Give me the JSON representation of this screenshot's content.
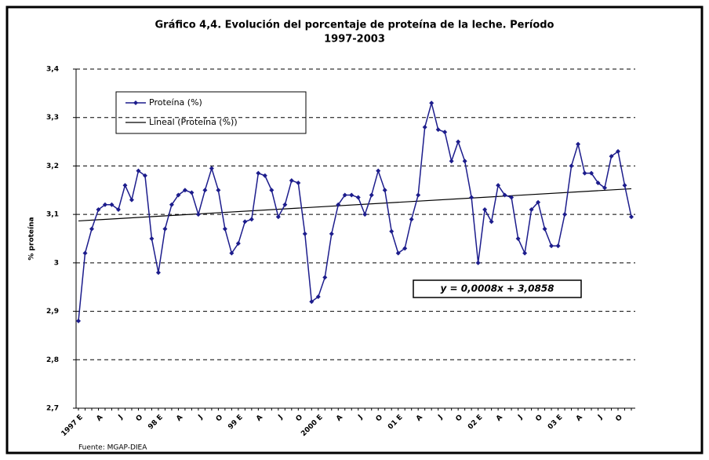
{
  "chart_data": {
    "type": "line",
    "title": "Gráfico 4,4. Evolución del porcentaje de proteína de la leche. Período",
    "subtitle": "1997-2003",
    "y_label": "% proteína",
    "source": "Fuente: MGAP-DIEA",
    "annotation": "y = 0,0008x + 3,0858",
    "categories": [
      "1997 E",
      null,
      null,
      "A",
      null,
      null,
      "J",
      null,
      null,
      "O",
      null,
      null,
      "98 E",
      null,
      null,
      "A",
      null,
      null,
      "J",
      null,
      null,
      "O",
      null,
      null,
      "99 E",
      null,
      null,
      "A",
      null,
      null,
      "J",
      null,
      null,
      "O",
      null,
      null,
      "2000 E",
      null,
      null,
      "A",
      null,
      null,
      "J",
      null,
      null,
      "O",
      null,
      null,
      "01 E",
      null,
      null,
      "A",
      null,
      null,
      "J",
      null,
      null,
      "O",
      null,
      null,
      "02 E",
      null,
      null,
      "A",
      null,
      null,
      "J",
      null,
      null,
      "O",
      null,
      null,
      "03 E",
      null,
      null,
      "A",
      null,
      null,
      "J",
      null,
      null,
      "O",
      null,
      null
    ],
    "series": [
      {
        "name": "Proteína (%)",
        "color": "#1c1c8c",
        "values": [
          2.88,
          3.02,
          3.07,
          3.11,
          3.12,
          3.12,
          3.11,
          3.16,
          3.13,
          3.19,
          3.18,
          3.05,
          2.98,
          3.07,
          3.12,
          3.14,
          3.15,
          3.145,
          3.1,
          3.15,
          3.195,
          3.15,
          3.07,
          3.02,
          3.04,
          3.085,
          3.09,
          3.185,
          3.18,
          3.15,
          3.095,
          3.12,
          3.17,
          3.165,
          3.06,
          2.92,
          2.93,
          2.97,
          3.06,
          3.12,
          3.14,
          3.14,
          3.135,
          3.1,
          3.14,
          3.19,
          3.15,
          3.065,
          3.02,
          3.03,
          3.09,
          3.14,
          3.28,
          3.33,
          3.275,
          3.27,
          3.21,
          3.25,
          3.21,
          3.135,
          3.0,
          3.11,
          3.085,
          3.16,
          3.14,
          3.135,
          3.05,
          3.02,
          3.11,
          3.125,
          3.07,
          3.035,
          3.035,
          3.1,
          3.2,
          3.245,
          3.185,
          3.185,
          3.165,
          3.155,
          3.22,
          3.23,
          3.16,
          3.095
        ]
      }
    ],
    "trendline": {
      "name": "Lineal (Proteína (%))",
      "color": "#000000",
      "slope": 0.0008,
      "intercept": 3.0858
    },
    "ylim": [
      2.7,
      3.4
    ],
    "yticks": [
      {
        "value": 2.7,
        "label": "2,7"
      },
      {
        "value": 2.8,
        "label": "2,8"
      },
      {
        "value": 2.9,
        "label": "2,9"
      },
      3,
      {
        "value": 3.1,
        "label": "3,1"
      },
      {
        "value": 3.2,
        "label": "3,2"
      },
      {
        "value": 3.3,
        "label": "3,3"
      },
      {
        "value": 3.4,
        "label": "3,4"
      }
    ],
    "grid": true
  }
}
